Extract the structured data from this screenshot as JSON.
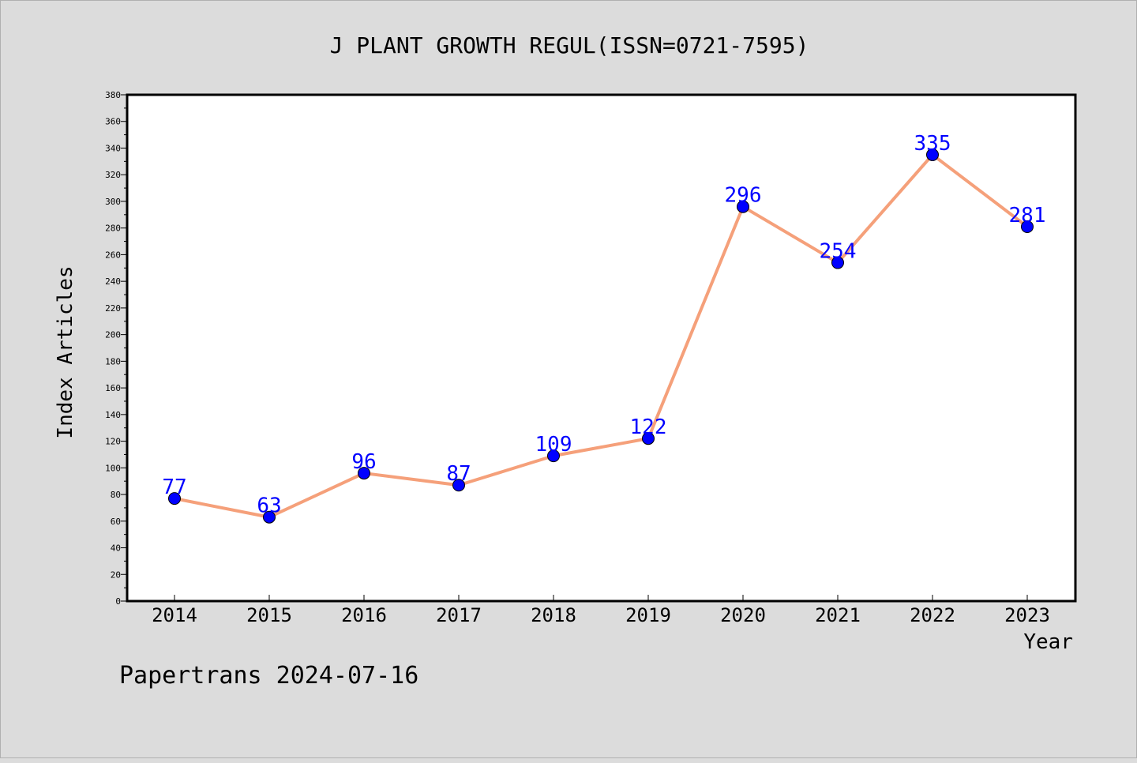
{
  "chart_data": {
    "type": "line",
    "title": "J PLANT GROWTH REGUL(ISSN=0721-7595)",
    "xlabel": "Year",
    "ylabel": "Index Articles",
    "categories": [
      "2014",
      "2015",
      "2016",
      "2017",
      "2018",
      "2019",
      "2020",
      "2021",
      "2022",
      "2023"
    ],
    "series": [
      {
        "values": [
          77,
          63,
          96,
          87,
          109,
          122,
          296,
          254,
          335,
          281
        ]
      }
    ],
    "ylim": [
      0,
      380
    ],
    "y_ticks": [
      0,
      20,
      40,
      60,
      80,
      100,
      120,
      140,
      160,
      180,
      200,
      220,
      240,
      260,
      280,
      300,
      320,
      340,
      360,
      380
    ],
    "grid": false,
    "data_labels": true,
    "colors": {
      "line": "#f5a07a",
      "marker": "#0000ff",
      "label": "#0000ff",
      "background": "#dcdcdc",
      "plot_background": "#ffffff"
    }
  },
  "footer": {
    "source": "Papertrans 2024-07-16"
  }
}
